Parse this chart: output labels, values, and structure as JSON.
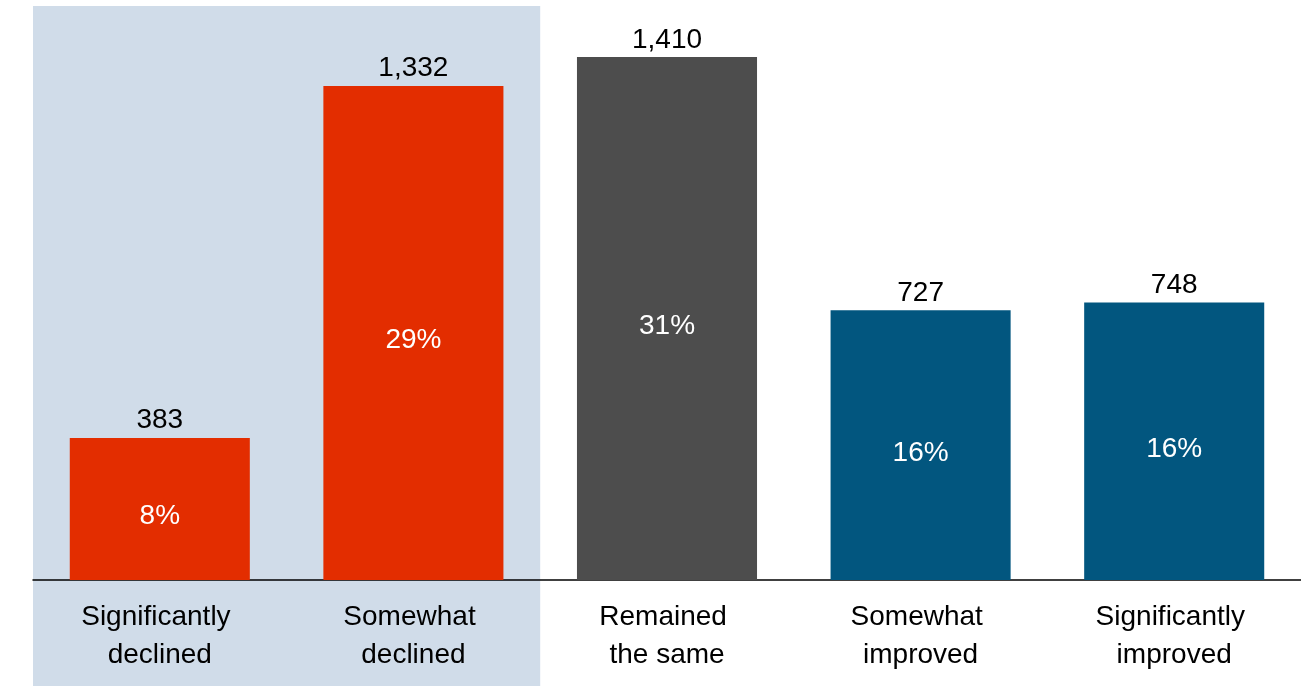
{
  "chart_data": {
    "type": "bar",
    "categories": [
      "Significantly declined",
      "Somewhat declined",
      "Remained the same",
      "Somewhat improved",
      "Significantly improved"
    ],
    "values": [
      383,
      1332,
      1410,
      727,
      748
    ],
    "value_labels": [
      "383",
      "1,332",
      "1,410",
      "727",
      "748"
    ],
    "colors": [
      "#e32d00",
      "#e32d00",
      "#4d4d4d",
      "#02567f",
      "#02567f"
    ],
    "annotations": [
      "8%",
      "29%",
      "31%",
      "16%",
      "16%"
    ],
    "bands": [
      {
        "axis": "x",
        "from": "Significantly declined",
        "to": "Somewhat declined",
        "color": "#d0dce9"
      }
    ],
    "grid": false
  }
}
